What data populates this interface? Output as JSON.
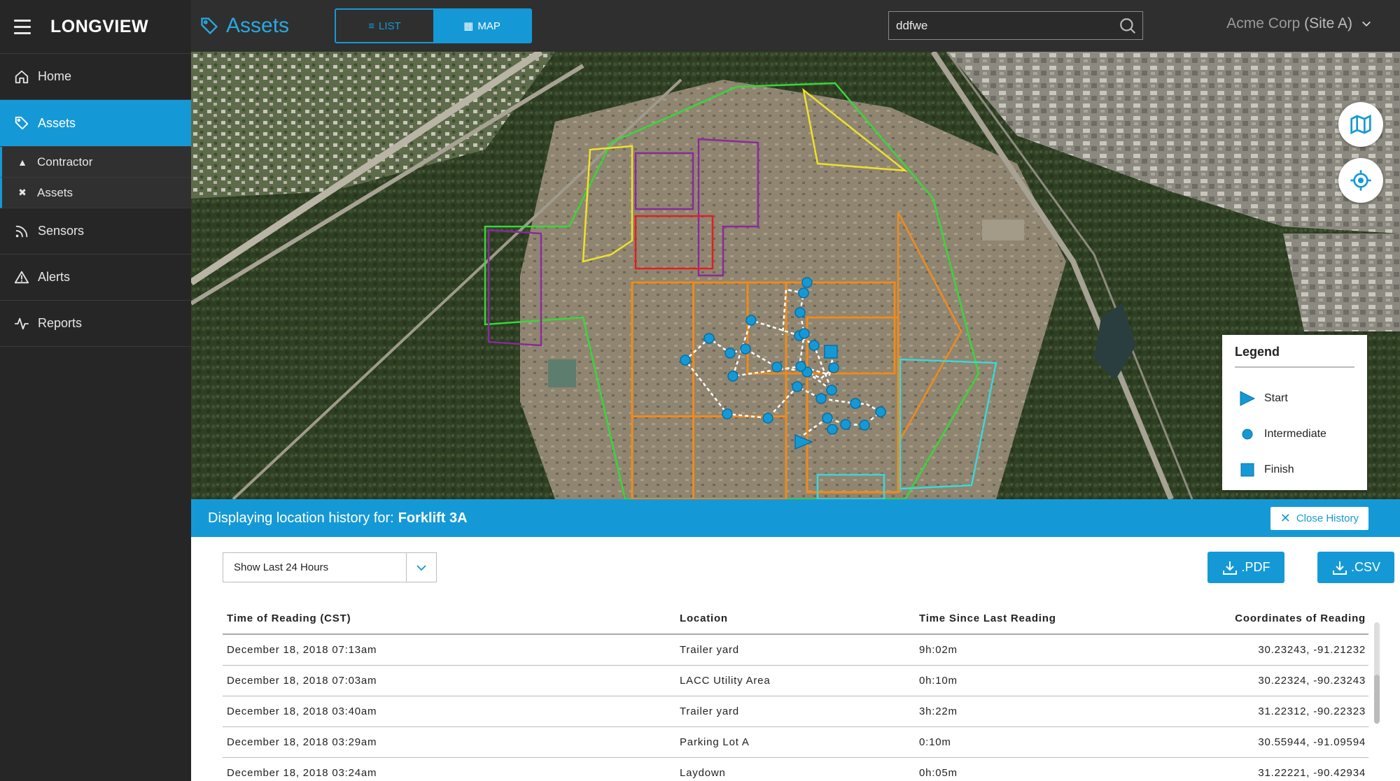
{
  "app": {
    "logo": "LONGVIEW"
  },
  "sidebar": {
    "items": [
      {
        "label": "Home",
        "icon": "home-icon"
      },
      {
        "label": "Assets",
        "icon": "tag-icon",
        "active": true
      },
      {
        "label": "Sensors",
        "icon": "rss-icon"
      },
      {
        "label": "Alerts",
        "icon": "alert-triangle-icon"
      },
      {
        "label": "Reports",
        "icon": "activity-icon"
      }
    ],
    "sub_items": [
      {
        "label": "Contractor",
        "icon": "hard-hat-icon"
      },
      {
        "label": "Assets",
        "icon": "tools-icon"
      }
    ]
  },
  "header": {
    "title": "Assets",
    "view_toggle": {
      "list_label": "LIST",
      "map_label": "MAP",
      "selected": "MAP"
    },
    "search": {
      "value": "ddfwe"
    },
    "site": {
      "org": "Acme Corp",
      "site": "(Site A)"
    }
  },
  "map": {
    "legend": {
      "title": "Legend",
      "items": [
        {
          "label": "Start",
          "symbol": "triangle"
        },
        {
          "label": "Intermediate",
          "symbol": "circle"
        },
        {
          "label": "Finish",
          "symbol": "square"
        }
      ]
    },
    "colors": {
      "path": "#1599d6",
      "boundary_green": "#39d63a",
      "boundary_yellow": "#f0e12a",
      "boundary_purple": "#8a2a9a",
      "boundary_orange": "#f08a1c",
      "boundary_cyan": "#3fd6d6",
      "boundary_red": "#e02020"
    }
  },
  "history": {
    "prefix": "Displaying location history for:",
    "asset": "Forklift 3A",
    "close_label": "Close History",
    "time_range": "Show Last 24 Hours",
    "export_pdf": ".PDF",
    "export_csv": ".CSV",
    "columns": [
      "Time of Reading (CST)",
      "Location",
      "Time Since Last Reading",
      "Coordinates of Reading"
    ],
    "rows": [
      [
        "December 18, 2018 07:13am",
        "Trailer yard",
        "9h:02m",
        "30.23243, -91.21232"
      ],
      [
        "December 18, 2018 07:03am",
        "LACC Utility Area",
        "0h:10m",
        "30.22324, -90.23243"
      ],
      [
        "December 18, 2018 03:40am",
        "Trailer yard",
        "3h:22m",
        "31.22312, -90.22323"
      ],
      [
        "December 18, 2018 03:29am",
        "Parking Lot A",
        "0:10m",
        "30.55944, -91.09594"
      ],
      [
        "December 18, 2018 03:24am",
        "Laydown",
        "0h:05m",
        "31.22221, -90.42934"
      ]
    ]
  }
}
